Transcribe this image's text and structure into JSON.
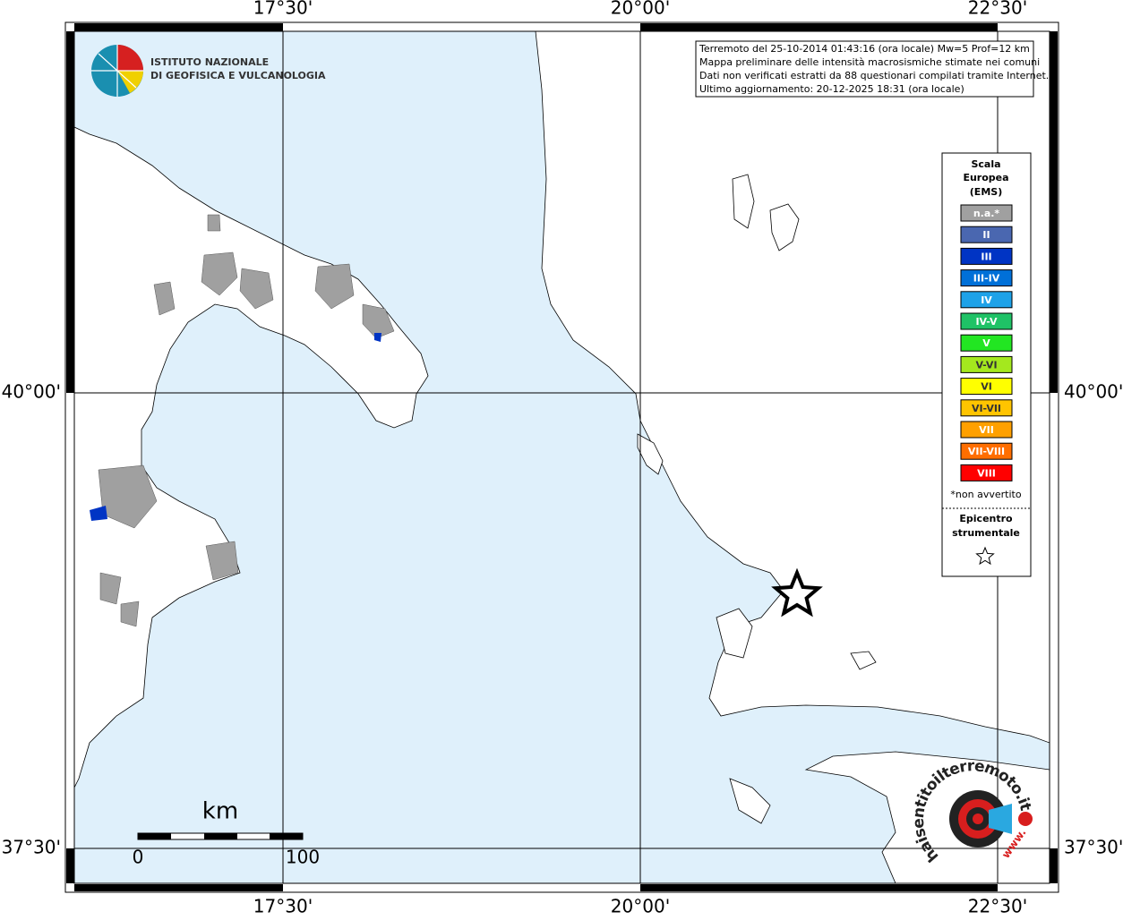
{
  "map": {
    "longitude_labels": [
      "17°30'",
      "20°00'",
      "22°30'"
    ],
    "latitude_labels": [
      "40°00'",
      "37°30'"
    ]
  },
  "logo": {
    "lines": [
      "ISTITUTO NAZIONALE",
      "DI GEOFISICA E VULCANOLOGIA"
    ]
  },
  "info_box": {
    "lines": [
      "Terremoto del 25-10-2014 01:43:16 (ora locale) Mw=5 Prof=12 km",
      "Mappa preliminare delle intensità macrosismiche stimate nei comuni",
      "Dati non verificati estratti da 88 questionari compilati tramite Internet.",
      "Ultimo aggiornamento: 20-12-2025 18:31 (ora locale)"
    ]
  },
  "legend": {
    "title": [
      "Scala",
      "Europea",
      "(EMS)"
    ],
    "items": [
      {
        "label": "n.a.*",
        "color": "#a0a0a0"
      },
      {
        "label": "II",
        "color": "#4a67b0"
      },
      {
        "label": "III",
        "color": "#0034c4"
      },
      {
        "label": "III-IV",
        "color": "#0070d8"
      },
      {
        "label": "IV",
        "color": "#1ea2e8"
      },
      {
        "label": "IV-V",
        "color": "#1fc266"
      },
      {
        "label": "V",
        "color": "#22e622"
      },
      {
        "label": "V-VI",
        "color": "#a4e81e"
      },
      {
        "label": "VI",
        "color": "#ffff00"
      },
      {
        "label": "VI-VII",
        "color": "#ffc400"
      },
      {
        "label": "VII",
        "color": "#ffa000"
      },
      {
        "label": "VII-VIII",
        "color": "#ff6e00"
      },
      {
        "label": "VIII",
        "color": "#ff0000"
      }
    ],
    "note": "*non avvertito",
    "epicenter_title": [
      "Epicentro",
      "strumentale"
    ]
  },
  "scale_bar": {
    "unit": "km",
    "labels": [
      "0",
      "100"
    ]
  },
  "watermark": {
    "text": "haisentitoilterremoto.it",
    "prefix": "www."
  }
}
